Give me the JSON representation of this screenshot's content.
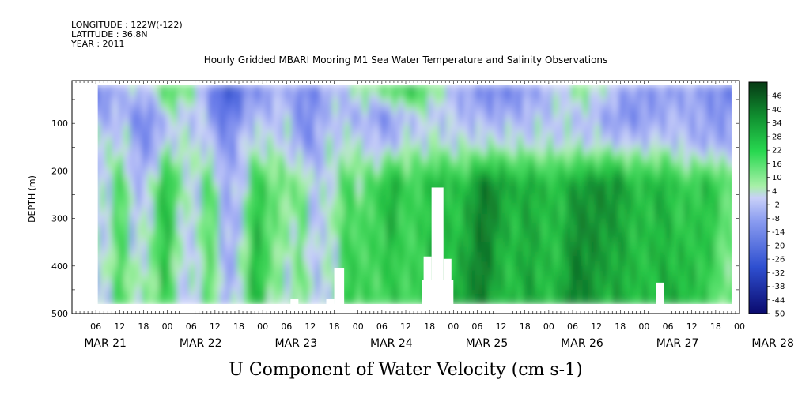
{
  "header": {
    "longitude": "LONGITUDE : 122W(-122)",
    "latitude": "LATITUDE : 36.8N",
    "year": "YEAR : 2011"
  },
  "chart_data": {
    "type": "heatmap",
    "title": "Hourly Gridded MBARI Mooring M1 Sea Water Temperature and Salinity Observations",
    "xlabel": "U Component of Water Velocity (cm s-1)",
    "ylabel": "DEPTH (m)",
    "y_ticks": [
      "100",
      "200",
      "300",
      "400",
      "500"
    ],
    "y_range": [
      10,
      500
    ],
    "y_inverted": true,
    "x_range_hours": [
      0,
      168
    ],
    "x_hour_ticks": [
      "06",
      "12",
      "18",
      "00",
      "06",
      "12",
      "18",
      "00",
      "06",
      "12",
      "18",
      "00",
      "06",
      "12",
      "18",
      "00",
      "06",
      "12",
      "18",
      "00",
      "06",
      "12",
      "18",
      "00",
      "06",
      "12",
      "18",
      "00"
    ],
    "day_labels": [
      "MAR 21",
      "MAR 22",
      "MAR 23",
      "MAR 24",
      "MAR 25",
      "MAR 26",
      "MAR 27",
      "MAR 28"
    ],
    "colorbar": {
      "labels": [
        "46",
        "40",
        "34",
        "28",
        "22",
        "16",
        "10",
        "4",
        "-2",
        "-8",
        "-14",
        "-20",
        "-26",
        "-32",
        "-38",
        "-44",
        "-50"
      ],
      "min": -50,
      "max": 52
    },
    "legend_position": "right"
  }
}
